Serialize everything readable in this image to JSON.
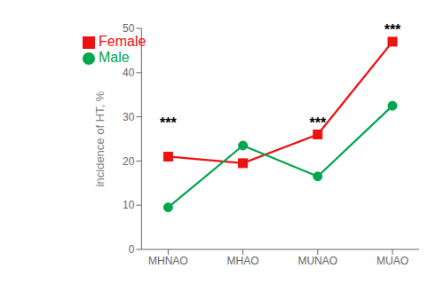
{
  "chart_data": {
    "type": "line",
    "categories": [
      "MHNAO",
      "MHAO",
      "MUNAO",
      "MUAO"
    ],
    "series": [
      {
        "name": "Female",
        "color": "#EE1111",
        "values": [
          21.0,
          19.5,
          26.0,
          47.0
        ],
        "marker": "square"
      },
      {
        "name": "Male",
        "color": "#00A550",
        "values": [
          9.5,
          23.5,
          16.5,
          32.5
        ],
        "marker": "circle"
      }
    ],
    "ylabel": "incidence of HT, %",
    "ylim": [
      0,
      50
    ],
    "yticks": [
      0,
      10,
      20,
      30,
      40,
      50
    ],
    "annotations": [
      {
        "x": "MHNAO",
        "y": 27.5,
        "text": "***"
      },
      {
        "x": "MUNAO",
        "y": 27.5,
        "text": "***"
      },
      {
        "x": "MUAO",
        "y": 48.5,
        "text": "***"
      }
    ],
    "legend": "upper left",
    "grid": false
  }
}
